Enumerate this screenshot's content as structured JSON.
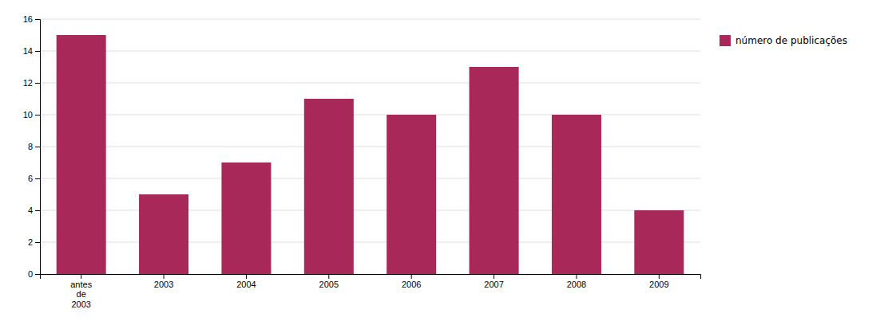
{
  "chart_data": {
    "type": "bar",
    "categories": [
      "antes\nde\n2003",
      "2003",
      "2004",
      "2005",
      "2006",
      "2007",
      "2008",
      "2009"
    ],
    "series": [
      {
        "name": "número de publicações",
        "color": "#a8285a",
        "values": [
          15,
          5,
          7,
          11,
          10,
          13,
          10,
          4
        ]
      }
    ],
    "ylim": [
      0,
      16
    ],
    "yticks": [
      0,
      2,
      4,
      6,
      8,
      10,
      12,
      14,
      16
    ],
    "grid": true,
    "legend": "right"
  }
}
